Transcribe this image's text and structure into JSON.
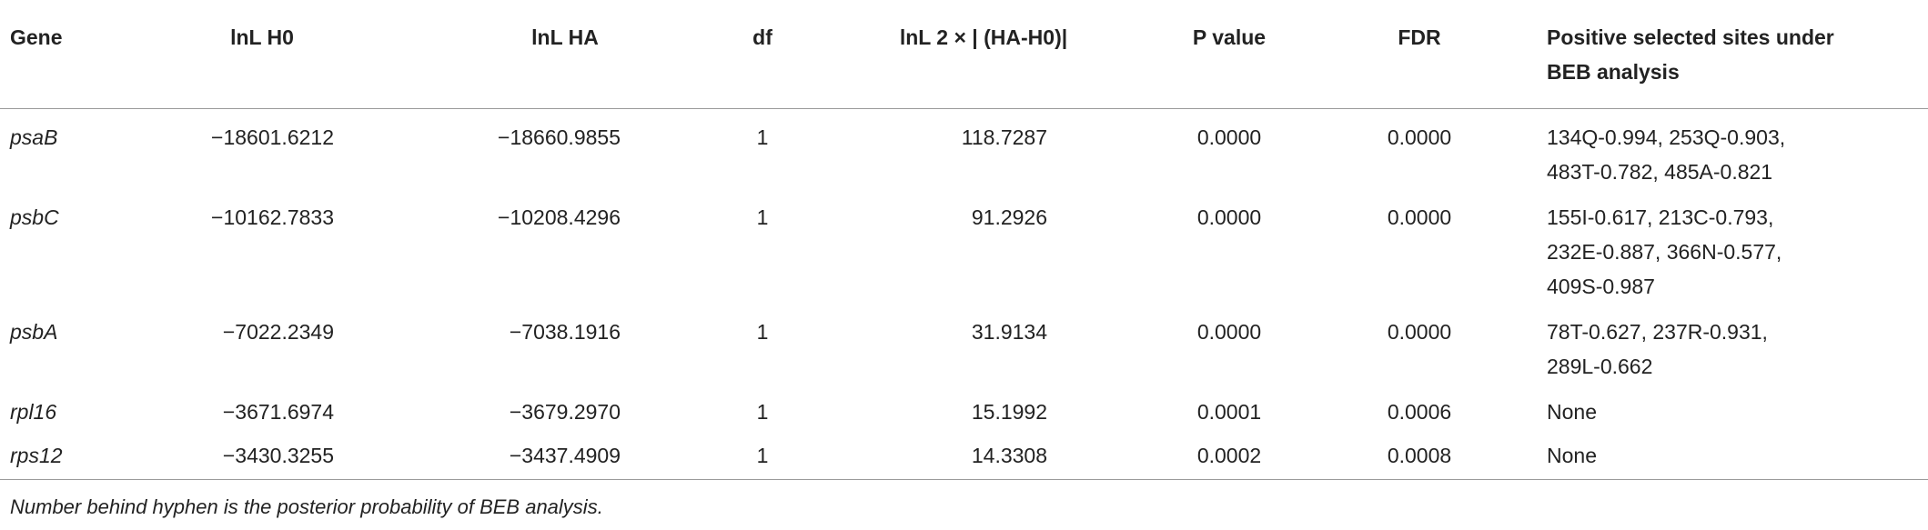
{
  "table": {
    "header": [
      "Gene",
      "lnL H0",
      "lnL HA",
      "df",
      "lnL 2 × | (HA-H0)|",
      "P value",
      "FDR",
      "Positive selected sites under BEB analysis"
    ],
    "rows": [
      [
        "psaB",
        "−18601.6212",
        "−18660.9855",
        "1",
        "118.7287",
        "0.0000",
        "0.0000",
        [
          "134Q-0.994, 253Q-0.903,",
          "483T-0.782, 485A-0.821"
        ]
      ],
      [
        "psbC",
        "−10162.7833",
        "−10208.4296",
        "1",
        "91.2926",
        "0.0000",
        "0.0000",
        [
          "155I-0.617, 213C-0.793,",
          "232E-0.887, 366N-0.577,",
          "409S-0.987"
        ]
      ],
      [
        "psbA",
        "−7022.2349",
        "−7038.1916",
        "1",
        "31.9134",
        "0.0000",
        "0.0000",
        [
          "78T-0.627, 237R-0.931,",
          "289L-0.662"
        ]
      ],
      [
        "rpl16",
        "−3671.6974",
        "−3679.2970",
        "1",
        "15.1992",
        "0.0001",
        "0.0006",
        [
          "None"
        ]
      ],
      [
        "rps12",
        "−3430.3255",
        "−3437.4909",
        "1",
        "14.3308",
        "0.0002",
        "0.0008",
        [
          "None"
        ]
      ]
    ],
    "footnote": "Number behind hyphen is the posterior probability of BEB analysis."
  }
}
